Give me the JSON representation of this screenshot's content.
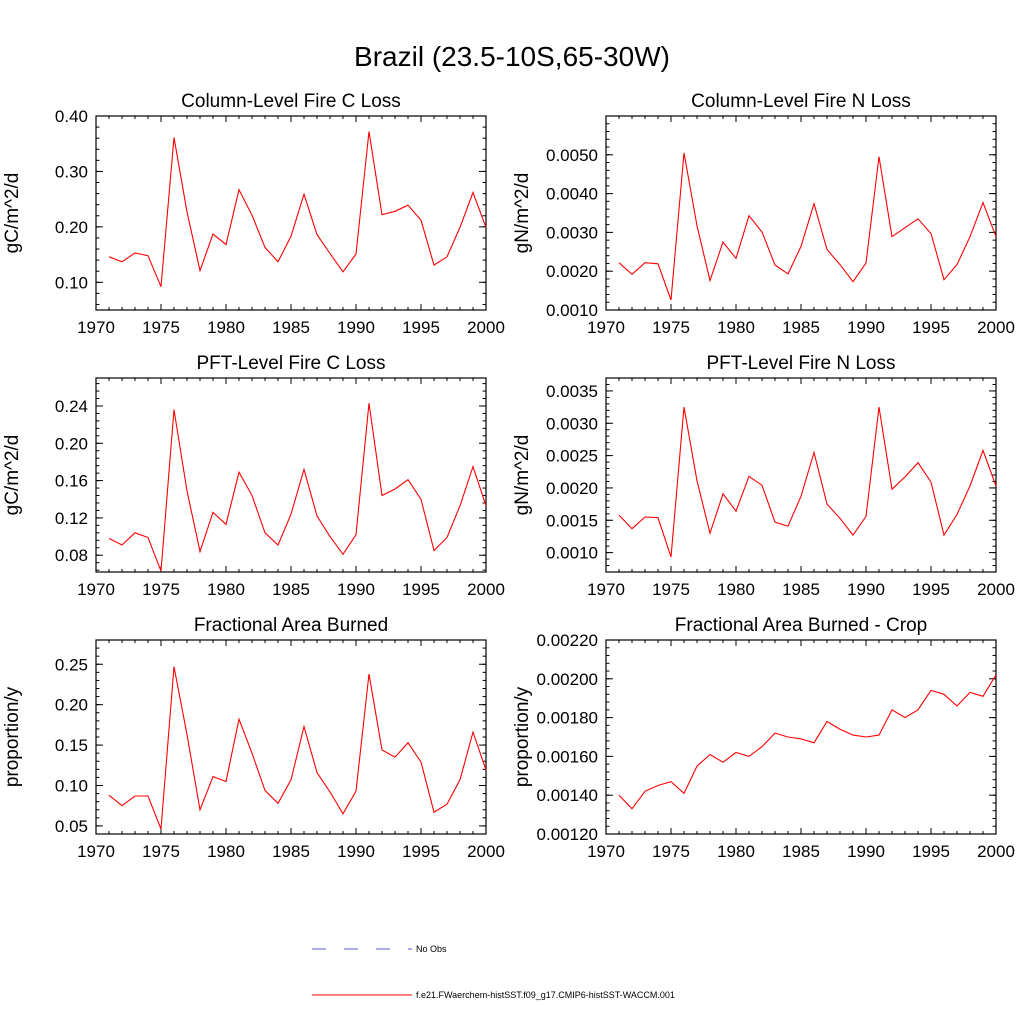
{
  "figure": {
    "title": "Brazil (23.5-10S,65-30W)"
  },
  "legend": {
    "items": [
      {
        "label": "No Obs",
        "color": "#5a5ad0",
        "style": "dashed"
      },
      {
        "label": "f.e21.FWaerchem-histSST.f09_g17.CMIP6-histSST-WACCM.001",
        "color": "#ff0000",
        "style": "solid"
      }
    ]
  },
  "chart_data": [
    {
      "type": "line",
      "title": "Column-Level Fire C Loss",
      "ylabel": "gC/m^2/d",
      "xlim": [
        1970,
        2000
      ],
      "ylim": [
        0.05,
        0.4
      ],
      "xticks": [
        "1970",
        "1975",
        "1980",
        "1985",
        "1990",
        "1995",
        "2000"
      ],
      "yticks": [
        "0.10",
        "0.20",
        "0.30",
        "0.40"
      ],
      "x": [
        1971,
        1972,
        1973,
        1974,
        1975,
        1976,
        1977,
        1978,
        1979,
        1980,
        1981,
        1982,
        1983,
        1984,
        1985,
        1986,
        1987,
        1988,
        1989,
        1990,
        1991,
        1992,
        1993,
        1994,
        1995,
        1996,
        1997,
        1998,
        1999,
        2000
      ],
      "series": [
        {
          "color": "#ff0000",
          "values": [
            0.146,
            0.137,
            0.153,
            0.148,
            0.092,
            0.361,
            0.227,
            0.121,
            0.187,
            0.168,
            0.267,
            0.221,
            0.163,
            0.137,
            0.183,
            0.259,
            0.186,
            0.152,
            0.119,
            0.151,
            0.372,
            0.222,
            0.228,
            0.239,
            0.212,
            0.131,
            0.146,
            0.199,
            0.262,
            0.199
          ]
        }
      ]
    },
    {
      "type": "line",
      "title": "Column-Level Fire N Loss",
      "ylabel": "gN/m^2/d",
      "xlim": [
        1970,
        2000
      ],
      "ylim": [
        0.001,
        0.006
      ],
      "xticks": [
        "1970",
        "1975",
        "1980",
        "1985",
        "1990",
        "1995",
        "2000"
      ],
      "yticks": [
        "0.0010",
        "0.0020",
        "0.0030",
        "0.0040",
        "0.0050"
      ],
      "x": [
        1971,
        1972,
        1973,
        1974,
        1975,
        1976,
        1977,
        1978,
        1979,
        1980,
        1981,
        1982,
        1983,
        1984,
        1985,
        1986,
        1987,
        1988,
        1989,
        1990,
        1991,
        1992,
        1993,
        1994,
        1995,
        1996,
        1997,
        1998,
        1999,
        2000
      ],
      "series": [
        {
          "color": "#ff0000",
          "values": [
            0.00222,
            0.00192,
            0.00222,
            0.00219,
            0.00126,
            0.00505,
            0.00317,
            0.00176,
            0.00275,
            0.00233,
            0.00343,
            0.00301,
            0.00216,
            0.00193,
            0.00264,
            0.00374,
            0.00256,
            0.00217,
            0.00173,
            0.00221,
            0.00495,
            0.00289,
            0.00312,
            0.00335,
            0.00297,
            0.00178,
            0.00217,
            0.00289,
            0.00377,
            0.00289
          ]
        }
      ]
    },
    {
      "type": "line",
      "title": "PFT-Level Fire C Loss",
      "ylabel": "gC/m^2/d",
      "xlim": [
        1970,
        2000
      ],
      "ylim": [
        0.062,
        0.27
      ],
      "xticks": [
        "1970",
        "1975",
        "1980",
        "1985",
        "1990",
        "1995",
        "2000"
      ],
      "yticks": [
        "0.08",
        "0.12",
        "0.16",
        "0.20",
        "0.24"
      ],
      "x": [
        1971,
        1972,
        1973,
        1974,
        1975,
        1976,
        1977,
        1978,
        1979,
        1980,
        1981,
        1982,
        1983,
        1984,
        1985,
        1986,
        1987,
        1988,
        1989,
        1990,
        1991,
        1992,
        1993,
        1994,
        1995,
        1996,
        1997,
        1998,
        1999,
        2000
      ],
      "series": [
        {
          "color": "#ff0000",
          "values": [
            0.098,
            0.091,
            0.104,
            0.099,
            0.063,
            0.236,
            0.149,
            0.084,
            0.126,
            0.113,
            0.169,
            0.144,
            0.104,
            0.091,
            0.124,
            0.172,
            0.122,
            0.1,
            0.081,
            0.102,
            0.243,
            0.144,
            0.151,
            0.161,
            0.14,
            0.085,
            0.099,
            0.133,
            0.175,
            0.133
          ]
        }
      ]
    },
    {
      "type": "line",
      "title": "PFT-Level Fire N Loss",
      "ylabel": "gN/m^2/d",
      "xlim": [
        1970,
        2000
      ],
      "ylim": [
        0.0007,
        0.0037
      ],
      "xticks": [
        "1970",
        "1975",
        "1980",
        "1985",
        "1990",
        "1995",
        "2000"
      ],
      "yticks": [
        "0.0010",
        "0.0015",
        "0.0020",
        "0.0025",
        "0.0030",
        "0.0035"
      ],
      "x": [
        1971,
        1972,
        1973,
        1974,
        1975,
        1976,
        1977,
        1978,
        1979,
        1980,
        1981,
        1982,
        1983,
        1984,
        1985,
        1986,
        1987,
        1988,
        1989,
        1990,
        1991,
        1992,
        1993,
        1994,
        1995,
        1996,
        1997,
        1998,
        1999,
        2000
      ],
      "series": [
        {
          "color": "#ff0000",
          "values": [
            0.00158,
            0.00137,
            0.00155,
            0.00154,
            0.00093,
            0.00325,
            0.00211,
            0.0013,
            0.00191,
            0.00164,
            0.00218,
            0.00204,
            0.00147,
            0.00141,
            0.00187,
            0.00255,
            0.00175,
            0.00153,
            0.00127,
            0.00156,
            0.00325,
            0.00198,
            0.00217,
            0.00239,
            0.00209,
            0.00127,
            0.00159,
            0.00203,
            0.00258,
            0.00203
          ]
        }
      ]
    },
    {
      "type": "line",
      "title": "Fractional Area Burned",
      "ylabel": "proportion/y",
      "xlim": [
        1970,
        2000
      ],
      "ylim": [
        0.04,
        0.28
      ],
      "xticks": [
        "1970",
        "1975",
        "1980",
        "1985",
        "1990",
        "1995",
        "2000"
      ],
      "yticks": [
        "0.05",
        "0.10",
        "0.15",
        "0.20",
        "0.25"
      ],
      "x": [
        1971,
        1972,
        1973,
        1974,
        1975,
        1976,
        1977,
        1978,
        1979,
        1980,
        1981,
        1982,
        1983,
        1984,
        1985,
        1986,
        1987,
        1988,
        1989,
        1990,
        1991,
        1992,
        1993,
        1994,
        1995,
        1996,
        1997,
        1998,
        1999,
        2000
      ],
      "series": [
        {
          "color": "#ff0000",
          "values": [
            0.088,
            0.075,
            0.087,
            0.087,
            0.046,
            0.247,
            0.163,
            0.07,
            0.111,
            0.105,
            0.182,
            0.14,
            0.094,
            0.078,
            0.107,
            0.173,
            0.116,
            0.092,
            0.065,
            0.093,
            0.238,
            0.144,
            0.135,
            0.153,
            0.129,
            0.067,
            0.077,
            0.107,
            0.166,
            0.119
          ]
        }
      ]
    },
    {
      "type": "line",
      "title": "Fractional Area Burned - Crop",
      "ylabel": "proportion/y",
      "xlim": [
        1970,
        2000
      ],
      "ylim": [
        0.0012,
        0.0022
      ],
      "xticks": [
        "1970",
        "1975",
        "1980",
        "1985",
        "1990",
        "1995",
        "2000"
      ],
      "yticks": [
        "0.00120",
        "0.00140",
        "0.00160",
        "0.00180",
        "0.00200",
        "0.00220"
      ],
      "x": [
        1971,
        1972,
        1973,
        1974,
        1975,
        1976,
        1977,
        1978,
        1979,
        1980,
        1981,
        1982,
        1983,
        1984,
        1985,
        1986,
        1987,
        1988,
        1989,
        1990,
        1991,
        1992,
        1993,
        1994,
        1995,
        1996,
        1997,
        1998,
        1999,
        2000
      ],
      "series": [
        {
          "color": "#ff0000",
          "values": [
            0.0014,
            0.00133,
            0.00142,
            0.00145,
            0.00147,
            0.00141,
            0.00155,
            0.00161,
            0.00157,
            0.00162,
            0.0016,
            0.00165,
            0.00172,
            0.0017,
            0.00169,
            0.00167,
            0.00178,
            0.00174,
            0.00171,
            0.0017,
            0.00171,
            0.00184,
            0.0018,
            0.00184,
            0.00194,
            0.00192,
            0.00186,
            0.00193,
            0.00191,
            0.00202
          ]
        }
      ]
    }
  ]
}
